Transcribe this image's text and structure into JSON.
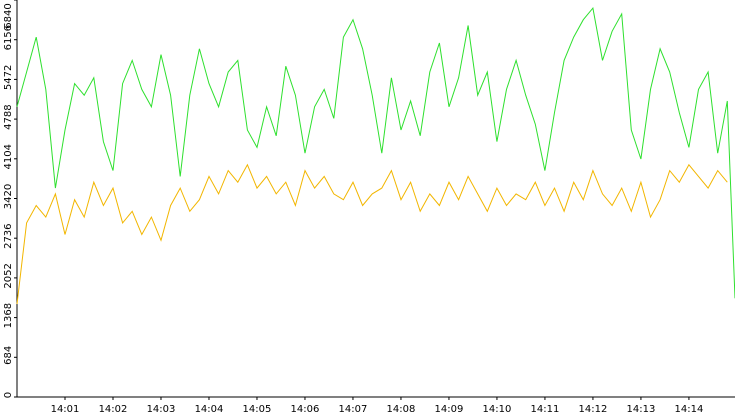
{
  "chart_data": {
    "type": "line",
    "x": [
      0,
      0.2,
      0.4,
      0.6,
      0.8,
      1,
      1.2,
      1.4,
      1.6,
      1.8,
      2,
      2.2,
      2.4,
      2.6,
      2.8,
      3,
      3.2,
      3.4,
      3.6,
      3.8,
      4,
      4.2,
      4.4,
      4.6,
      4.8,
      5,
      5.2,
      5.4,
      5.6,
      5.8,
      6,
      6.2,
      6.4,
      6.6,
      6.8,
      7,
      7.2,
      7.4,
      7.6,
      7.8,
      8,
      8.2,
      8.4,
      8.6,
      8.8,
      9,
      9.2,
      9.4,
      9.6,
      9.8,
      10,
      10.2,
      10.4,
      10.6,
      10.8,
      11,
      11.2,
      11.4,
      11.6,
      11.8,
      12,
      12.2,
      12.4,
      12.6,
      12.8,
      13,
      13.2,
      13.4,
      13.6,
      13.8,
      14,
      14.2,
      14.4,
      14.6,
      14.8,
      14.96
    ],
    "series": [
      {
        "color": "#2ee02e",
        "values": [
          5000,
          5600,
          6200,
          5300,
          3600,
          4600,
          5400,
          5200,
          5500,
          4400,
          3900,
          5400,
          5800,
          5300,
          5000,
          5900,
          5200,
          3800,
          5200,
          6000,
          5400,
          5000,
          5600,
          5800,
          4600,
          4300,
          5000,
          4500,
          5700,
          5200,
          4200,
          5000,
          5300,
          4800,
          6200,
          6500,
          6000,
          5200,
          4200,
          5500,
          4600,
          5100,
          4500,
          5600,
          6100,
          5000,
          5500,
          6400,
          5200,
          5600,
          4400,
          5300,
          5800,
          5200,
          4700,
          3900,
          4900,
          5800,
          6200,
          6500,
          6700,
          5800,
          6300,
          6600,
          4600,
          4100,
          5300,
          6000,
          5600,
          4900,
          4300,
          5300,
          5600,
          4200,
          5100,
          1700
        ]
      },
      {
        "color": "#f2b600",
        "values": [
          1600,
          3000,
          3300,
          3100,
          3500,
          2800,
          3400,
          3100,
          3700,
          3300,
          3600,
          3000,
          3200,
          2800,
          3100,
          2700,
          3300,
          3600,
          3200,
          3400,
          3800,
          3500,
          3900,
          3700,
          4000,
          3600,
          3800,
          3500,
          3700,
          3300,
          3900,
          3600,
          3800,
          3500,
          3400,
          3700,
          3300,
          3500,
          3600,
          3900,
          3400,
          3700,
          3200,
          3500,
          3300,
          3700,
          3400,
          3800,
          3500,
          3200,
          3600,
          3300,
          3500,
          3400,
          3700,
          3300,
          3600,
          3200,
          3700,
          3400,
          3900,
          3500,
          3300,
          3600,
          3200,
          3700,
          3100,
          3400,
          3900,
          3700,
          4000,
          3800,
          3600,
          3900,
          3700,
          null
        ]
      }
    ],
    "xlim": [
      0,
      14.96
    ],
    "xticks": [
      {
        "value": 1,
        "label": "14:01"
      },
      {
        "value": 2,
        "label": "14:02"
      },
      {
        "value": 3,
        "label": "14:03"
      },
      {
        "value": 4,
        "label": "14:04"
      },
      {
        "value": 5,
        "label": "14:05"
      },
      {
        "value": 6,
        "label": "14:06"
      },
      {
        "value": 7,
        "label": "14:07"
      },
      {
        "value": 8,
        "label": "14:08"
      },
      {
        "value": 9,
        "label": "14:09"
      },
      {
        "value": 10,
        "label": "14:10"
      },
      {
        "value": 11,
        "label": "14:11"
      },
      {
        "value": 12,
        "label": "14:12"
      },
      {
        "value": 13,
        "label": "14:13"
      },
      {
        "value": 14,
        "label": "14:14"
      }
    ],
    "ylim": [
      0,
      6840
    ],
    "yticks": [
      0,
      684,
      1368,
      2052,
      2736,
      3420,
      4104,
      4788,
      5472,
      6156,
      6840
    ]
  }
}
